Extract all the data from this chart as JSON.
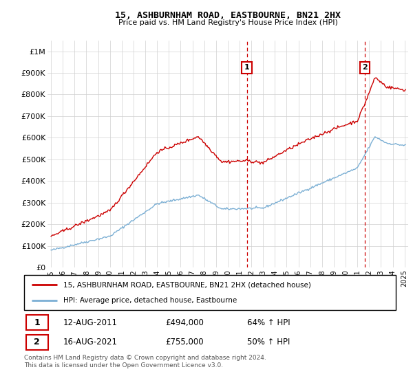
{
  "title": "15, ASHBURNHAM ROAD, EASTBOURNE, BN21 2HX",
  "subtitle": "Price paid vs. HM Land Registry's House Price Index (HPI)",
  "legend_line1": "15, ASHBURNHAM ROAD, EASTBOURNE, BN21 2HX (detached house)",
  "legend_line2": "HPI: Average price, detached house, Eastbourne",
  "transaction1_date": "12-AUG-2011",
  "transaction1_price": "£494,000",
  "transaction1_hpi": "64% ↑ HPI",
  "transaction2_date": "16-AUG-2021",
  "transaction2_price": "£755,000",
  "transaction2_hpi": "50% ↑ HPI",
  "footnote": "Contains HM Land Registry data © Crown copyright and database right 2024.\nThis data is licensed under the Open Government Licence v3.0.",
  "red_color": "#cc0000",
  "blue_color": "#7bafd4",
  "annotation_box_color": "#cc0000",
  "background_color": "#f0f0f0",
  "ylim_max": 1050000,
  "yticks": [
    0,
    100000,
    200000,
    300000,
    400000,
    500000,
    600000,
    700000,
    800000,
    900000,
    1000000
  ],
  "ytick_labels": [
    "£0",
    "£100K",
    "£200K",
    "£300K",
    "£400K",
    "£500K",
    "£600K",
    "£700K",
    "£800K",
    "£900K",
    "£1M"
  ],
  "xlim_min": 1994.7,
  "xlim_max": 2025.3,
  "t1_x": 2011.6167,
  "t1_y": 494000,
  "t2_x": 2021.6167,
  "t2_y": 755000
}
